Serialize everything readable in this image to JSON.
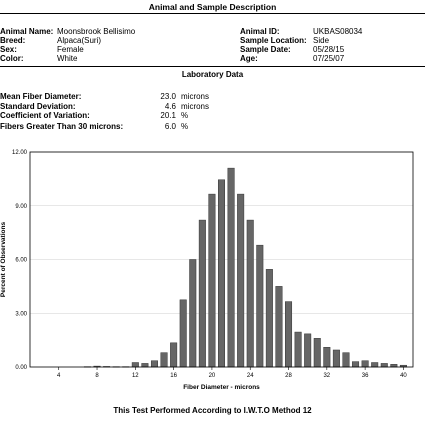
{
  "header": {
    "title": "Animal and Sample Description"
  },
  "animal": {
    "name_label": "Animal Name:",
    "name": "Moonsbrook Bellisimo",
    "breed_label": "Breed:",
    "breed": "Alpaca(Suri)",
    "sex_label": "Sex:",
    "sex": "Female",
    "color_label": "Color:",
    "color": "White",
    "id_label": "Animal ID:",
    "id": "UKBAS08034",
    "location_label": "Sample Location:",
    "location": "Side",
    "date_label": "Sample Date:",
    "date": "05/28/15",
    "age_label": "Age:",
    "age": "07/25/07"
  },
  "lab": {
    "title": "Laboratory Data",
    "rows": [
      {
        "label": "Mean Fiber Diameter:",
        "value": "23.0",
        "unit": "microns"
      },
      {
        "label": "Standard Deviation:",
        "value": "4.6",
        "unit": "microns"
      },
      {
        "label": "Coefficient of Variation:",
        "value": "20.1",
        "unit": "%"
      },
      {
        "label": "Fibers Greater Than 30 microns:",
        "value": "6.0",
        "unit": "%"
      }
    ]
  },
  "chart_data": {
    "type": "bar",
    "xlabel": "Fiber Diameter - microns",
    "ylabel": "Percent of Observations",
    "xlim": [
      1,
      41
    ],
    "ylim": [
      0,
      12
    ],
    "xticks": [
      4,
      8,
      12,
      16,
      20,
      24,
      28,
      32,
      36,
      40
    ],
    "yticks": [
      0,
      3,
      6,
      9,
      12
    ],
    "ytick_labels": [
      "0.00",
      "3.00",
      "6.00",
      "9.00",
      "12.00"
    ],
    "grid": true,
    "x": [
      7,
      8,
      9,
      10,
      11,
      12,
      13,
      14,
      15,
      16,
      17,
      18,
      19,
      20,
      21,
      22,
      23,
      24,
      25,
      26,
      27,
      28,
      29,
      30,
      31,
      32,
      33,
      34,
      35,
      36,
      37,
      38,
      39,
      40
    ],
    "values": [
      0.02,
      0.05,
      0.03,
      0.02,
      0.02,
      0.25,
      0.2,
      0.35,
      0.8,
      1.35,
      3.75,
      6.0,
      8.2,
      9.65,
      10.45,
      11.1,
      9.65,
      8.2,
      6.8,
      5.45,
      4.5,
      3.65,
      1.95,
      1.85,
      1.6,
      1.1,
      0.95,
      0.8,
      0.3,
      0.35,
      0.25,
      0.2,
      0.15,
      0.1
    ]
  },
  "footer": {
    "text": "This Test Performed According to I.W.T.O Method 12"
  }
}
